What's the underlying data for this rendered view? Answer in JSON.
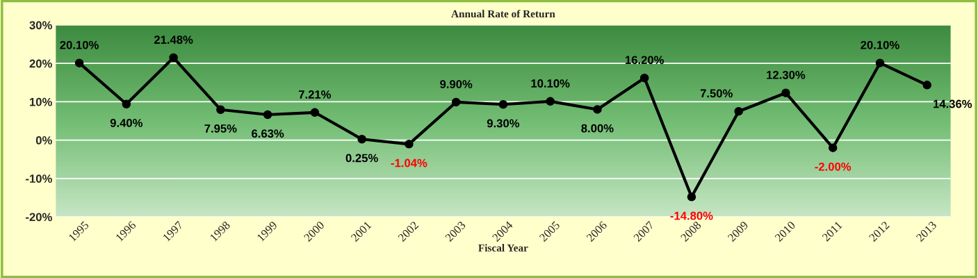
{
  "chart_data": {
    "type": "line",
    "title": "Annual Rate of Return",
    "xlabel": "Fiscal Year",
    "categories": [
      "1995",
      "1996",
      "1997",
      "1998",
      "1999",
      "2000",
      "2001",
      "2002",
      "2003",
      "2004",
      "2005",
      "2006",
      "2007",
      "2008",
      "2009",
      "2010",
      "2011",
      "2012",
      "2013"
    ],
    "series": [
      {
        "color": "#000000",
        "values": [
          20.1,
          9.4,
          21.48,
          7.95,
          6.63,
          7.21,
          0.25,
          -1.04,
          9.9,
          9.3,
          10.1,
          8.0,
          16.2,
          -14.8,
          7.5,
          12.3,
          -2.0,
          20.1,
          14.36
        ],
        "value_labels": [
          "20.10%",
          "9.40%",
          "21.48%",
          "7.95%",
          "6.63%",
          "7.21%",
          "0.25%",
          "-1.04%",
          "9.90%",
          "9.30%",
          "10.10%",
          "8.00%",
          "16.20%",
          "-14.80%",
          "7.50%",
          "12.30%",
          "-2.00%",
          "20.10%",
          "14.36%"
        ]
      }
    ],
    "ylim": [
      -20,
      30
    ],
    "yticks": [
      {
        "value": -20,
        "label": "-20%"
      },
      {
        "value": -10,
        "label": "-10%"
      },
      {
        "value": 0,
        "label": "0%"
      },
      {
        "value": 10,
        "label": "10%"
      },
      {
        "value": 20,
        "label": "20%"
      },
      {
        "value": 30,
        "label": "30%"
      }
    ],
    "grid": "y",
    "marker": "circle",
    "line_style": "solid",
    "legend": false
  }
}
